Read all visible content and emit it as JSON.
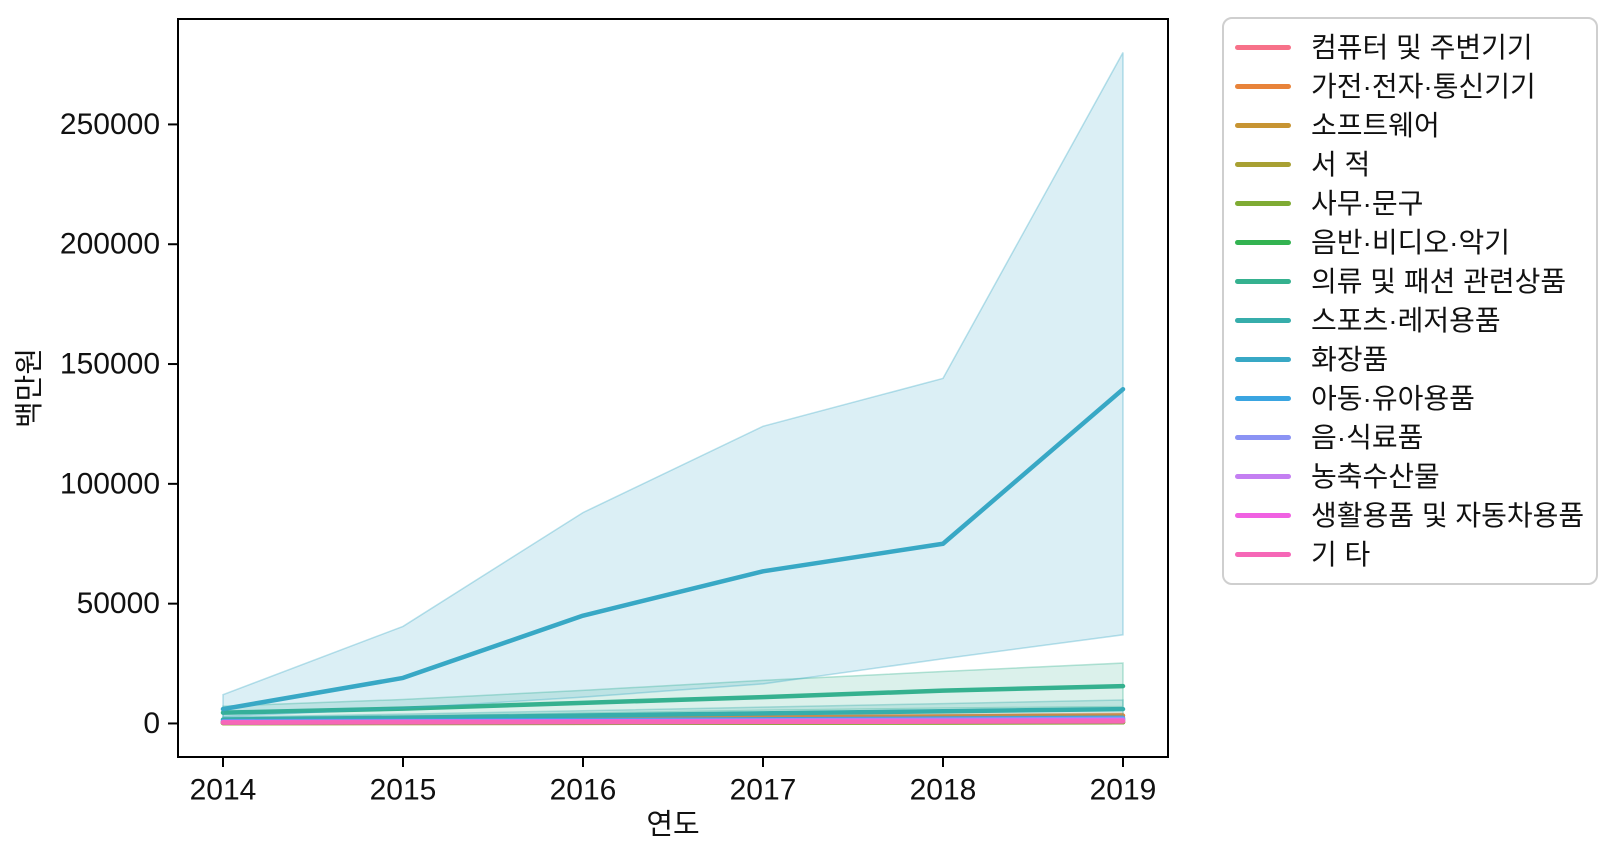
{
  "figure": {
    "background": "#ffffff",
    "text_color": "#111111",
    "spine_color": "#000000",
    "legend_border_color": "#cfcfcf"
  },
  "chart_data": {
    "type": "line",
    "title": "",
    "xlabel": "연도",
    "ylabel": "백만원",
    "x": [
      2014,
      2015,
      2016,
      2017,
      2018,
      2019
    ],
    "xticks": [
      "2014",
      "2015",
      "2016",
      "2017",
      "2018",
      "2019"
    ],
    "yticks": [
      0,
      50000,
      100000,
      150000,
      200000,
      250000
    ],
    "ytick_labels": [
      "0",
      "50000",
      "100000",
      "150000",
      "200000",
      "250000"
    ],
    "xlim": [
      2013.75,
      2019.25
    ],
    "ylim": [
      -14000,
      294000
    ],
    "grid": false,
    "legend_position": "right",
    "band_opacity": 0.18,
    "series": [
      {
        "name": "컴퓨터 및 주변기기",
        "color": "#f77189",
        "values": [
          400,
          550,
          700,
          900,
          1100,
          1300
        ]
      },
      {
        "name": "가전·전자·통신기기",
        "color": "#e8833a",
        "values": [
          900,
          1400,
          2000,
          2500,
          2900,
          3300
        ],
        "band": {
          "lower": [
            600,
            900,
            1300,
            1700,
            2000,
            2300
          ],
          "upper": [
            1200,
            1900,
            2700,
            3300,
            3800,
            4300
          ]
        }
      },
      {
        "name": "소프트웨어",
        "color": "#c79432",
        "values": [
          150,
          200,
          250,
          320,
          400,
          480
        ]
      },
      {
        "name": "서 적",
        "color": "#a8a032",
        "values": [
          250,
          300,
          350,
          420,
          500,
          580
        ]
      },
      {
        "name": "사무·문구",
        "color": "#7fab33",
        "values": [
          180,
          230,
          280,
          340,
          410,
          480
        ]
      },
      {
        "name": "음반·비디오·악기",
        "color": "#33b351",
        "values": [
          350,
          550,
          800,
          1100,
          1400,
          1700
        ]
      },
      {
        "name": "의류 및 패션 관련상품",
        "color": "#35b18f",
        "values": [
          4500,
          6200,
          8600,
          11000,
          13700,
          15600
        ],
        "band": {
          "lower": [
            2400,
            3200,
            4300,
            5500,
            6400,
            7100
          ],
          "upper": [
            7200,
            10000,
            13800,
            18000,
            21700,
            25200
          ]
        }
      },
      {
        "name": "스포츠·레저용품",
        "color": "#36adab",
        "values": [
          1600,
          2400,
          3300,
          4200,
          5100,
          6000
        ],
        "band": {
          "lower": [
            800,
            1200,
            1700,
            2200,
            2700,
            3200
          ],
          "upper": [
            2600,
            3900,
            5300,
            6800,
            8300,
            9800
          ]
        }
      },
      {
        "name": "화장품",
        "color": "#38a8c5",
        "values": [
          6000,
          19000,
          45000,
          63500,
          75000,
          139500
        ],
        "band": {
          "lower": [
            2900,
            6300,
            11000,
            16500,
            27000,
            37000
          ],
          "upper": [
            12000,
            40500,
            88000,
            124000,
            144000,
            280000
          ]
        }
      },
      {
        "name": "아동·유아용품",
        "color": "#3aa5e1",
        "values": [
          900,
          1100,
          1400,
          1700,
          2000,
          2300
        ]
      },
      {
        "name": "음·식료품",
        "color": "#8b93f4",
        "values": [
          650,
          850,
          1050,
          1300,
          1600,
          1900
        ]
      },
      {
        "name": "농축수산물",
        "color": "#c47ff2",
        "values": [
          450,
          550,
          700,
          850,
          1050,
          1250
        ]
      },
      {
        "name": "생활용품 및 자동차용품",
        "color": "#f061e2",
        "values": [
          550,
          700,
          850,
          1000,
          1150,
          1300
        ]
      },
      {
        "name": "기 타",
        "color": "#f667b7",
        "values": [
          350,
          450,
          550,
          650,
          750,
          850
        ]
      }
    ]
  }
}
